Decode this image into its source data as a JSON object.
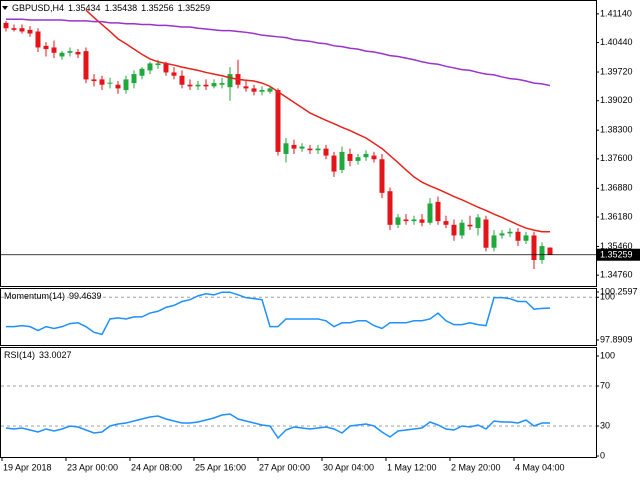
{
  "chart_data": [
    {
      "type": "candlestick",
      "title": "GBPUSD,H4",
      "categories": [
        "19 Apr 2018",
        null,
        null,
        null,
        null,
        null,
        null,
        null,
        "23 Apr 00:00",
        null,
        null,
        null,
        null,
        null,
        null,
        null,
        "24 Apr 08:00",
        null,
        null,
        null,
        null,
        null,
        null,
        null,
        "25 Apr 16:00",
        null,
        null,
        null,
        null,
        null,
        null,
        null,
        "27 Apr 00:00",
        null,
        null,
        null,
        null,
        null,
        null,
        null,
        "30 Apr 04:00",
        null,
        null,
        null,
        null,
        null,
        null,
        null,
        "1 May 12:00",
        null,
        null,
        null,
        null,
        null,
        null,
        null,
        "2 May 20:00",
        null,
        null,
        null,
        null,
        null,
        null,
        null,
        "4 May 04:00",
        null,
        null,
        null,
        null
      ],
      "open": [
        1.4092,
        1.4079,
        1.4079,
        1.4075,
        1.4071,
        1.4036,
        1.4032,
        1.401,
        1.4019,
        1.4021,
        1.4023,
        1.3954,
        1.3954,
        1.3945,
        1.3941,
        1.3928,
        1.3945,
        1.3963,
        1.3976,
        1.3989,
        1.3993,
        1.3971,
        1.3963,
        1.3941,
        1.3937,
        1.3941,
        1.3937,
        1.3941,
        1.3935,
        1.3967,
        1.3937,
        1.3932,
        1.3924,
        1.3924,
        1.3928,
        1.3772,
        1.3794,
        1.3785,
        1.3785,
        1.3781,
        1.3785,
        1.3768,
        1.3733,
        1.3772,
        1.3755,
        1.3764,
        1.3768,
        1.3759,
        1.3681,
        1.3599,
        1.3612,
        1.3608,
        1.3612,
        1.3604,
        1.3655,
        1.3608,
        1.3599,
        1.3573,
        1.3599,
        1.3591,
        1.3612,
        1.3543,
        1.3573,
        1.3578,
        1.3582,
        1.356,
        1.3573,
        1.3513,
        1.35434
      ],
      "high": [
        1.4097,
        1.4088,
        1.4088,
        1.4084,
        1.4079,
        1.4045,
        1.4049,
        1.4023,
        1.4032,
        1.4028,
        1.4032,
        1.3967,
        1.3963,
        1.3958,
        1.395,
        1.3963,
        1.3976,
        1.3984,
        1.3997,
        1.4002,
        1.3997,
        1.3984,
        1.3976,
        1.3954,
        1.395,
        1.3954,
        1.3954,
        1.3958,
        1.3984,
        1.4002,
        1.395,
        1.3941,
        1.3937,
        1.3937,
        1.3932,
        1.3811,
        1.3807,
        1.3798,
        1.3794,
        1.3794,
        1.3794,
        1.3777,
        1.379,
        1.3785,
        1.3772,
        1.3781,
        1.3777,
        1.3772,
        1.369,
        1.3625,
        1.3625,
        1.3621,
        1.3625,
        1.3664,
        1.3668,
        1.3621,
        1.3612,
        1.3612,
        1.3621,
        1.3625,
        1.3621,
        1.3586,
        1.3586,
        1.3591,
        1.3591,
        1.3582,
        1.3582,
        1.3556,
        1.35438
      ],
      "low": [
        1.4071,
        1.4071,
        1.4066,
        1.4058,
        1.4021,
        1.401,
        1.4006,
        1.4002,
        1.401,
        1.4006,
        1.3945,
        1.3937,
        1.3928,
        1.3932,
        1.3919,
        1.3919,
        1.3932,
        1.3954,
        1.3967,
        1.398,
        1.3963,
        1.3954,
        1.3932,
        1.3928,
        1.3928,
        1.3928,
        1.3932,
        1.3932,
        1.3902,
        1.3932,
        1.3924,
        1.3915,
        1.3915,
        1.3919,
        1.3768,
        1.3751,
        1.3772,
        1.3777,
        1.3772,
        1.3772,
        1.3759,
        1.3716,
        1.3725,
        1.3742,
        1.3746,
        1.3755,
        1.3751,
        1.3664,
        1.3586,
        1.3591,
        1.3599,
        1.3599,
        1.3595,
        1.3599,
        1.3599,
        1.3591,
        1.356,
        1.3565,
        1.3586,
        1.3573,
        1.3534,
        1.3534,
        1.3565,
        1.3569,
        1.3547,
        1.3552,
        1.3491,
        1.3504,
        1.35256
      ],
      "close": [
        1.4079,
        1.4075,
        1.4071,
        1.4066,
        1.4032,
        1.4028,
        1.4019,
        1.4019,
        1.4023,
        1.4015,
        1.3954,
        1.395,
        1.3941,
        1.3946,
        1.3932,
        1.3954,
        1.3967,
        1.398,
        1.3993,
        1.3993,
        1.3971,
        1.3963,
        1.3941,
        1.3937,
        1.3941,
        1.3937,
        1.3945,
        1.3945,
        1.3967,
        1.3941,
        1.3932,
        1.3924,
        1.3928,
        1.3932,
        1.3777,
        1.3798,
        1.3785,
        1.379,
        1.3781,
        1.3785,
        1.3768,
        1.3729,
        1.3777,
        1.3755,
        1.3764,
        1.3772,
        1.3759,
        1.3677,
        1.3599,
        1.3617,
        1.3608,
        1.3612,
        1.3604,
        1.3651,
        1.3608,
        1.3599,
        1.3573,
        1.3604,
        1.3595,
        1.3617,
        1.3543,
        1.3573,
        1.3578,
        1.3582,
        1.356,
        1.3573,
        1.3513,
        1.3547,
        1.35259
      ],
      "up_color": "#1fa83c",
      "down_color": "#e3151b",
      "series": [
        {
          "color": "#e8231b",
          "values": [
            null,
            null,
            null,
            null,
            null,
            null,
            null,
            null,
            null,
            null,
            1.4123,
            1.4105,
            1.4088,
            1.4071,
            1.4053,
            1.4041,
            1.4028,
            1.4015,
            1.4004,
            1.3997,
            1.3993,
            1.3989,
            1.3984,
            1.398,
            1.3976,
            1.3971,
            1.3967,
            1.3963,
            1.3958,
            1.3954,
            1.3952,
            1.395,
            1.3945,
            1.3937,
            1.3924,
            1.3911,
            1.3898,
            1.3885,
            1.3872,
            1.3863,
            1.3854,
            1.3846,
            1.3837,
            1.3829,
            1.382,
            1.3811,
            1.3798,
            1.3785,
            1.3768,
            1.3751,
            1.3733,
            1.3716,
            1.3703,
            1.3694,
            1.3686,
            1.3677,
            1.3668,
            1.366,
            1.3651,
            1.3642,
            1.3634,
            1.3625,
            1.3617,
            1.3608,
            1.3599,
            1.3591,
            1.3586,
            1.3582,
            1.3582
          ]
        },
        {
          "color": "#9a32cd",
          "values": [
            1.4101,
            1.4101,
            1.4101,
            1.4099,
            1.4099,
            1.4099,
            1.4099,
            1.4099,
            1.4097,
            1.4097,
            1.4097,
            1.4095,
            1.4095,
            1.4092,
            1.4092,
            1.409,
            1.409,
            1.4088,
            1.4088,
            1.4086,
            1.4086,
            1.4084,
            1.4082,
            1.4082,
            1.4079,
            1.4077,
            1.4075,
            1.4073,
            1.4073,
            1.4071,
            1.4069,
            1.4066,
            1.4062,
            1.406,
            1.4058,
            1.4056,
            1.4051,
            1.4049,
            1.4047,
            1.4043,
            1.4041,
            1.4036,
            1.4034,
            1.403,
            1.4028,
            1.4023,
            1.4021,
            1.4017,
            1.4012,
            1.401,
            1.4006,
            1.4002,
            1.3997,
            1.3993,
            1.3991,
            1.3986,
            1.3982,
            1.3978,
            1.3976,
            1.3971,
            1.3967,
            1.3965,
            1.396,
            1.3956,
            1.3954,
            1.395,
            1.3945,
            1.3943,
            1.3939
          ]
        }
      ],
      "ylim": [
        1.3452,
        1.4143
      ],
      "yticks": [
        {
          "value": 1.4114,
          "label": "1.41140"
        },
        {
          "value": 1.4044,
          "label": "1.40440"
        },
        {
          "value": 1.3972,
          "label": "1.39720"
        },
        {
          "value": 1.3902,
          "label": "1.39020"
        },
        {
          "value": 1.383,
          "label": "1.38300"
        },
        {
          "value": 1.376,
          "label": "1.37600"
        },
        {
          "value": 1.3688,
          "label": "1.36880"
        },
        {
          "value": 1.3618,
          "label": "1.36180"
        },
        {
          "value": 1.3546,
          "label": "1.35460"
        },
        {
          "value": 1.3476,
          "label": "1.34760"
        }
      ],
      "current_price_line": true
    },
    {
      "type": "line",
      "title": "Momentum(14)",
      "values": [
        98.55,
        98.55,
        98.6,
        98.55,
        98.36,
        98.55,
        98.46,
        98.55,
        98.7,
        98.74,
        98.55,
        98.27,
        98.17,
        98.93,
        98.98,
        98.93,
        99.03,
        99.03,
        99.22,
        99.31,
        99.5,
        99.6,
        99.79,
        99.88,
        100.07,
        100.17,
        100.12,
        100.25,
        100.25,
        100.12,
        99.98,
        99.93,
        99.88,
        98.55,
        98.55,
        98.93,
        98.93,
        98.93,
        98.93,
        98.93,
        98.84,
        98.55,
        98.74,
        98.74,
        98.84,
        98.84,
        98.6,
        98.46,
        98.74,
        98.74,
        98.74,
        98.84,
        98.84,
        98.93,
        99.22,
        98.84,
        98.65,
        98.65,
        98.74,
        98.65,
        98.6,
        99.98,
        99.98,
        99.93,
        99.79,
        99.79,
        99.41,
        99.45,
        99.4639
      ],
      "color": "#1e90ff",
      "ylim": [
        97.8909,
        100.2597
      ],
      "yticks": [
        100.2597,
        100,
        97.8909
      ],
      "levels": [
        100
      ]
    },
    {
      "type": "line",
      "title": "RSI(14)",
      "values": [
        28,
        27,
        28,
        26,
        24,
        27,
        25,
        27,
        30,
        29,
        26,
        23,
        24,
        30,
        32,
        33,
        35,
        37,
        39,
        40,
        37,
        35,
        33,
        33,
        34,
        36,
        38,
        41,
        42,
        37,
        35,
        33,
        31,
        30,
        18,
        26,
        29,
        28,
        27,
        28,
        29,
        27,
        23,
        30,
        31,
        32,
        30,
        24,
        19,
        25,
        26,
        27,
        28,
        34,
        31,
        27,
        26,
        30,
        29,
        31,
        27,
        35,
        34,
        34,
        33,
        36,
        30,
        33,
        33.0027
      ],
      "color": "#1e90ff",
      "ylim": [
        0,
        100
      ],
      "yticks": [
        100,
        70,
        30,
        0
      ],
      "levels": [
        70,
        30
      ]
    }
  ]
}
